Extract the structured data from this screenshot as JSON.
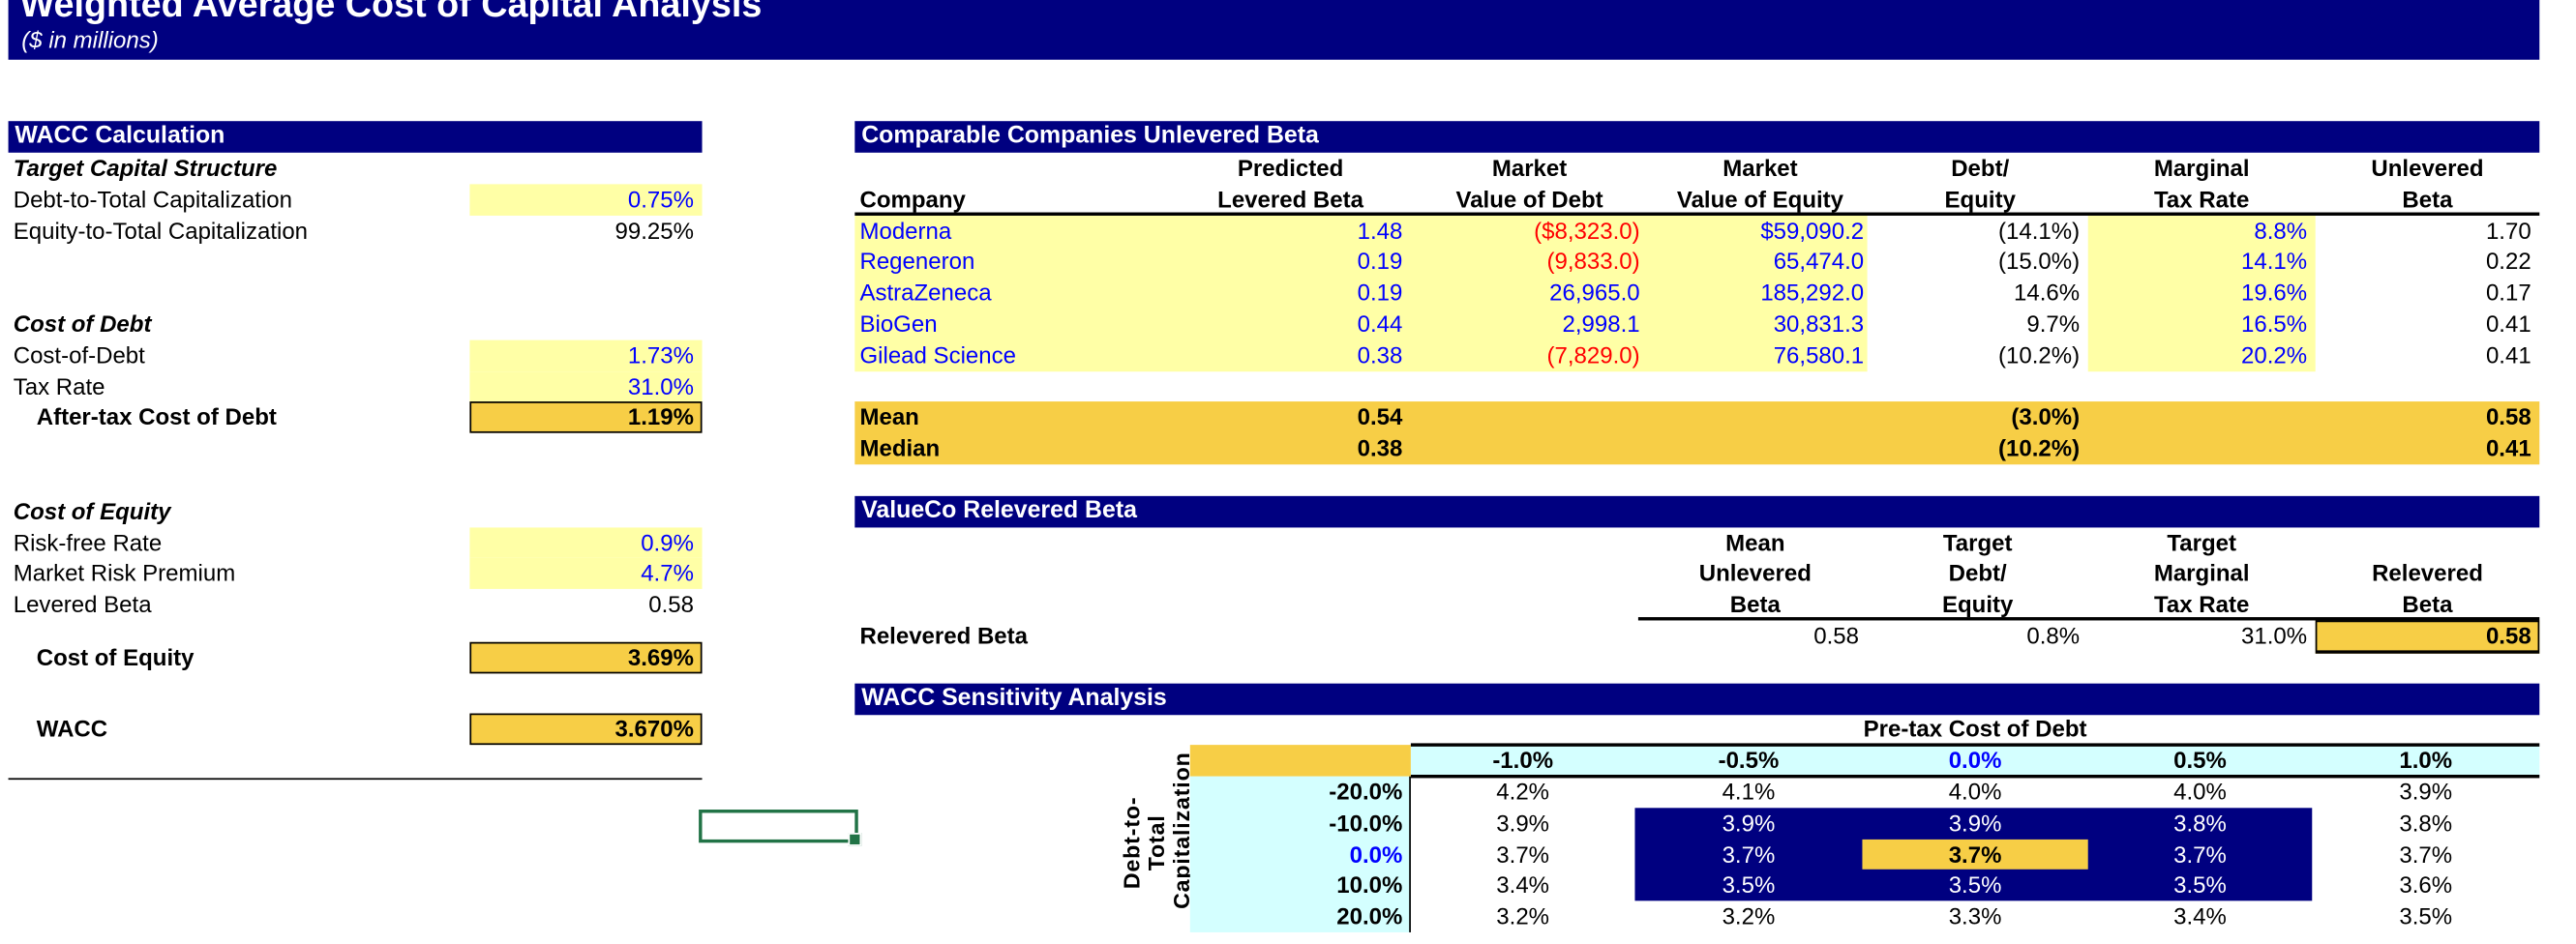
{
  "header": {
    "title": "Weighted Average Cost of Capital Analysis",
    "subtitle": "($ in millions)"
  },
  "colors": {
    "navy": "#000080",
    "input_yellow": "#FFFFA6",
    "output_gold": "#F7CE46",
    "axis_cyan": "#D4FFFF",
    "input_blue": "#0000FF",
    "negative_red": "#FF0000"
  },
  "wacc": {
    "title": "WACC Calculation",
    "target_section": "Target Capital Structure",
    "debt_to_cap_label": "Debt-to-Total Capitalization",
    "debt_to_cap": "0.75%",
    "equity_to_cap_label": "Equity-to-Total Capitalization",
    "equity_to_cap": "99.25%",
    "debt_section": "Cost of Debt",
    "cost_of_debt_label": "Cost-of-Debt",
    "cost_of_debt": "1.73%",
    "tax_rate_label": "Tax Rate",
    "tax_rate": "31.0%",
    "after_tax_label": "After-tax Cost of Debt",
    "after_tax": "1.19%",
    "equity_section": "Cost of Equity",
    "rf_label": "Risk-free Rate",
    "rf": "0.9%",
    "mrp_label": "Market Risk Premium",
    "mrp": "4.7%",
    "beta_label": "Levered Beta",
    "beta": "0.58",
    "coe_label": "Cost of Equity",
    "coe": "3.69%",
    "wacc_label": "WACC",
    "wacc": "3.670%"
  },
  "comps": {
    "title": "Comparable Companies Unlevered Beta",
    "columns": [
      {
        "l1": "",
        "l2": "Company"
      },
      {
        "l1": "Predicted",
        "l2": "Levered Beta"
      },
      {
        "l1": "Market",
        "l2": "Value of Debt"
      },
      {
        "l1": "Market",
        "l2": "Value of Equity"
      },
      {
        "l1": "Debt/",
        "l2": "Equity"
      },
      {
        "l1": "Marginal",
        "l2": "Tax Rate"
      },
      {
        "l1": "Unlevered",
        "l2": "Beta"
      }
    ],
    "rows": [
      [
        "Moderna",
        "1.48",
        "($8,323.0)",
        "$59,090.2",
        "(14.1%)",
        "8.8%",
        "1.70"
      ],
      [
        "Regeneron",
        "0.19",
        "(9,833.0)",
        "65,474.0",
        "(15.0%)",
        "14.1%",
        "0.22"
      ],
      [
        "AstraZeneca",
        "0.19",
        "26,965.0",
        "185,292.0",
        "14.6%",
        "19.6%",
        "0.17"
      ],
      [
        "BioGen",
        "0.44",
        "2,998.1",
        "30,831.3",
        "9.7%",
        "16.5%",
        "0.41"
      ],
      [
        "Gilead Science",
        "0.38",
        "(7,829.0)",
        "76,580.1",
        "(10.2%)",
        "20.2%",
        "0.41"
      ]
    ],
    "mean": [
      "Mean",
      "0.54",
      "",
      "",
      "(3.0%)",
      "",
      "0.58"
    ],
    "median": [
      "Median",
      "0.38",
      "",
      "",
      "(10.2%)",
      "",
      "0.41"
    ]
  },
  "relevered": {
    "title": "ValueCo Relevered Beta",
    "columns": [
      [
        "Mean",
        "Unlevered",
        "Beta"
      ],
      [
        "Target",
        "Debt/",
        "Equity"
      ],
      [
        "Target",
        "Marginal",
        "Tax Rate"
      ],
      [
        "",
        "Relevered",
        "Beta"
      ]
    ],
    "row_label": "Relevered Beta",
    "values": [
      "0.58",
      "0.8%",
      "31.0%",
      "0.58"
    ]
  },
  "sensitivity": {
    "title": "WACC Sensitivity Analysis",
    "col_axis_label": "Pre-tax Cost of Debt",
    "row_axis_label": "Debt-to-Total Capitalization",
    "col_headers": [
      "-1.0%",
      "-0.5%",
      "0.0%",
      "0.5%",
      "1.0%"
    ],
    "row_headers": [
      "-20.0%",
      "-10.0%",
      "0.0%",
      "10.0%",
      "20.0%"
    ],
    "values": [
      [
        "4.2%",
        "4.1%",
        "4.0%",
        "4.0%",
        "3.9%"
      ],
      [
        "3.9%",
        "3.9%",
        "3.9%",
        "3.8%",
        "3.8%"
      ],
      [
        "3.7%",
        "3.7%",
        "3.7%",
        "3.7%",
        "3.7%"
      ],
      [
        "3.4%",
        "3.5%",
        "3.5%",
        "3.5%",
        "3.6%"
      ],
      [
        "3.2%",
        "3.2%",
        "3.3%",
        "3.4%",
        "3.5%"
      ]
    ]
  }
}
